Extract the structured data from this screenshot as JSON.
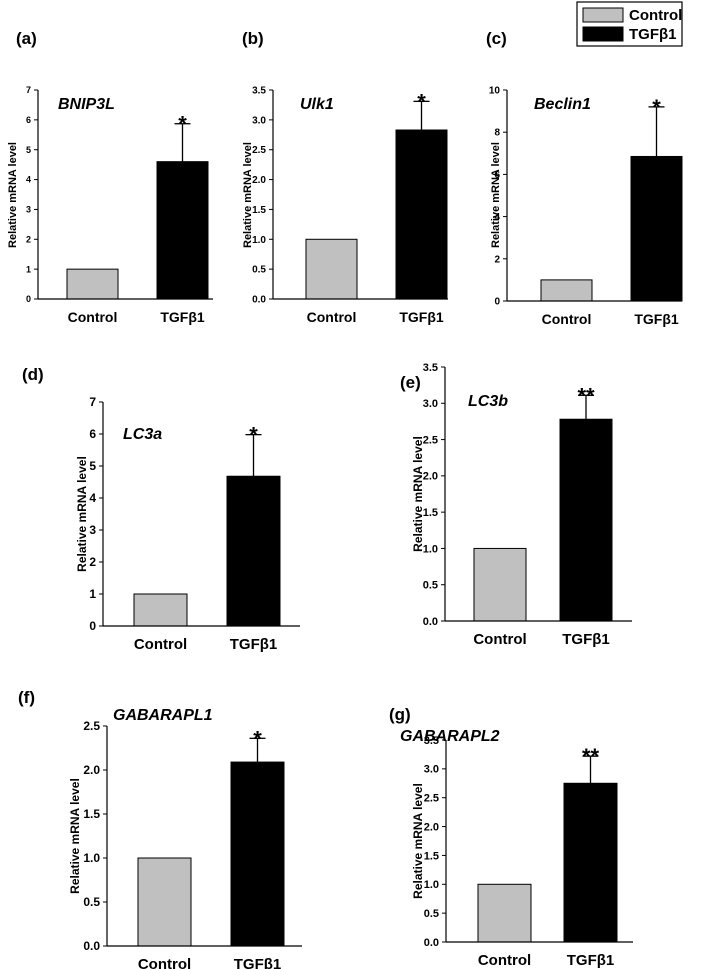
{
  "legend": {
    "position": "top-right",
    "entries": [
      {
        "label": "Control",
        "color": "#c0c0c0"
      },
      {
        "label": "TGFβ1",
        "color": "#000000"
      }
    ]
  },
  "colors": {
    "control": "#c0c0c0",
    "tgfb1": "#000000",
    "axis": "#000000"
  },
  "chart_data": [
    {
      "panel": "(a)",
      "type": "bar",
      "title": "BNIP3L",
      "ylabel": "Relative mRNA level",
      "categories": [
        "Control",
        "TGFβ1"
      ],
      "values": [
        1.0,
        4.6
      ],
      "errors": [
        0,
        1.27
      ],
      "significance": [
        "",
        "*"
      ],
      "ylim": [
        0,
        7
      ],
      "ticks": [
        "0",
        "1",
        "2",
        "3",
        "4",
        "5",
        "6",
        "7"
      ]
    },
    {
      "panel": "(b)",
      "type": "bar",
      "title": "Ulk1",
      "ylabel": "Relative mRNA level",
      "categories": [
        "Control",
        "TGFβ1"
      ],
      "values": [
        1.0,
        2.83
      ],
      "errors": [
        0,
        0.48
      ],
      "significance": [
        "",
        "*"
      ],
      "ylim": [
        0,
        3.5
      ],
      "ticks": [
        "0.0",
        "0.5",
        "1.0",
        "1.5",
        "2.0",
        "2.5",
        "3.0",
        "3.5"
      ]
    },
    {
      "panel": "(c)",
      "type": "bar",
      "title": "Beclin1",
      "ylabel": "Relative mRNA level",
      "categories": [
        "Control",
        "TGFβ1"
      ],
      "values": [
        1.0,
        6.85
      ],
      "errors": [
        0,
        2.35
      ],
      "significance": [
        "",
        "*"
      ],
      "ylim": [
        0,
        10
      ],
      "ticks": [
        "0",
        "2",
        "4",
        "6",
        "8",
        "10"
      ]
    },
    {
      "panel": "(d)",
      "type": "bar",
      "title": "LC3a",
      "ylabel": "Relative mRNA level",
      "categories": [
        "Control",
        "TGFβ1"
      ],
      "values": [
        1.0,
        4.68
      ],
      "errors": [
        0,
        1.3
      ],
      "significance": [
        "",
        "*"
      ],
      "ylim": [
        0,
        7
      ],
      "ticks": [
        "0",
        "1",
        "2",
        "3",
        "4",
        "5",
        "6",
        "7"
      ]
    },
    {
      "panel": "(e)",
      "type": "bar",
      "title": "LC3b",
      "ylabel": "Relative mRNA level",
      "categories": [
        "Control",
        "TGFβ1"
      ],
      "values": [
        1.0,
        2.78
      ],
      "errors": [
        0,
        0.33
      ],
      "significance": [
        "",
        "**"
      ],
      "ylim": [
        0,
        3.5
      ],
      "ticks": [
        "0.0",
        "0.5",
        "1.0",
        "1.5",
        "2.0",
        "2.5",
        "3.0",
        "3.5"
      ]
    },
    {
      "panel": "(f)",
      "type": "bar",
      "title": "GABARAPL1",
      "ylabel": "Relative mRNA level",
      "categories": [
        "Control",
        "TGFβ1"
      ],
      "values": [
        1.0,
        2.09
      ],
      "errors": [
        0,
        0.27
      ],
      "significance": [
        "",
        "*"
      ],
      "ylim": [
        0,
        2.5
      ],
      "ticks": [
        "0.0",
        "0.5",
        "1.0",
        "1.5",
        "2.0",
        "2.5"
      ]
    },
    {
      "panel": "(g)",
      "type": "bar",
      "title": "GABARAPL2",
      "ylabel": "Relative mRNA level",
      "categories": [
        "Control",
        "TGFβ1"
      ],
      "values": [
        1.0,
        2.75
      ],
      "errors": [
        0,
        0.47
      ],
      "significance": [
        "",
        "**"
      ],
      "ylim": [
        0,
        3.5
      ],
      "ticks": [
        "0.0",
        "0.5",
        "1.0",
        "1.5",
        "2.0",
        "2.5",
        "3.0",
        "3.5"
      ]
    }
  ]
}
